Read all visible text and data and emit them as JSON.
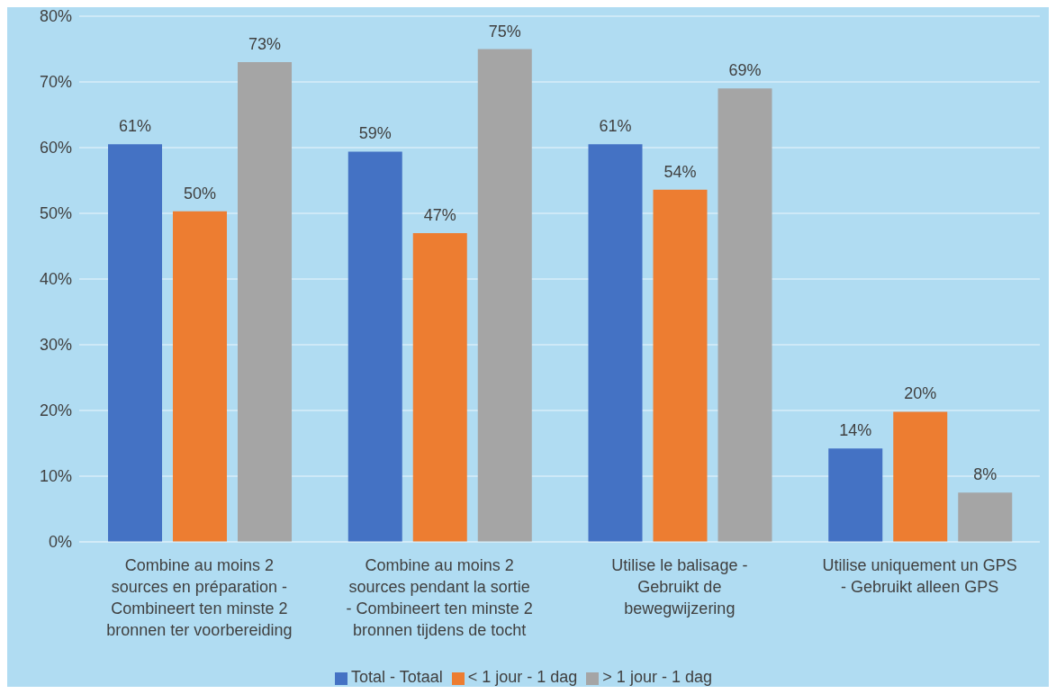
{
  "chart_data": {
    "type": "bar",
    "categories": [
      "Combine au moins 2 sources en préparation - Combineert ten minste 2 bronnen ter voorbereiding",
      "Combine au moins 2 sources pendant la sortie - Combineert ten minste 2 bronnen tijdens de tocht",
      "Utilise le balisage - Gebruikt de bewegwijzering",
      "Utilise uniquement un GPS - Gebruikt alleen GPS"
    ],
    "series": [
      {
        "name": "Total - Totaal",
        "color": "#4472c4",
        "values": [
          60.5,
          59.4,
          60.5,
          14.2
        ],
        "value_labels": [
          "61%",
          "59%",
          "61%",
          "14%"
        ]
      },
      {
        "name": "< 1 jour - 1 dag",
        "color": "#ed7d31",
        "values": [
          50.3,
          47,
          53.6,
          19.8
        ],
        "value_labels": [
          "50%",
          "47%",
          "54%",
          "20%"
        ]
      },
      {
        "name": "> 1 jour - 1 dag",
        "color": "#a5a5a5",
        "values": [
          73,
          75,
          69,
          7.5
        ],
        "value_labels": [
          "73%",
          "75%",
          "69%",
          "8%"
        ]
      }
    ],
    "ylim": [
      0,
      80
    ],
    "yticks": [
      {
        "value": 0,
        "label": "0%"
      },
      {
        "value": 10,
        "label": "10%"
      },
      {
        "value": 20,
        "label": "20%"
      },
      {
        "value": 30,
        "label": "30%"
      },
      {
        "value": 40,
        "label": "40%"
      },
      {
        "value": 50,
        "label": "50%"
      },
      {
        "value": 60,
        "label": "60%"
      },
      {
        "value": 70,
        "label": "70%"
      },
      {
        "value": 80,
        "label": "80%"
      }
    ],
    "grid": "y",
    "legend": "bottom"
  }
}
